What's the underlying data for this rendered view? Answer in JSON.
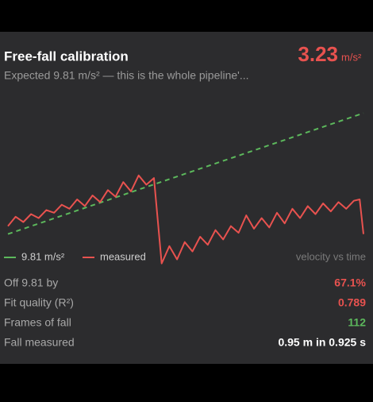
{
  "header": {
    "title": "Free-fall calibration",
    "value": "3.23",
    "unit": "m/s²",
    "subtitle": "Expected 9.81 m/s² — this is the whole pipeline'..."
  },
  "chart_data": {
    "type": "line",
    "annotation": "velocity vs time",
    "xlim": [
      0,
      0.925
    ],
    "ylim": [
      -3,
      11
    ],
    "series": [
      {
        "name": "9.81 m/s²",
        "color": "#5cb85c",
        "dashed": true,
        "x": [
          0,
          0.925
        ],
        "values": [
          0,
          9.07
        ]
      },
      {
        "name": "measured",
        "color": "#e8524f",
        "dashed": false,
        "x": [
          0,
          0.02,
          0.04,
          0.06,
          0.08,
          0.1,
          0.12,
          0.14,
          0.16,
          0.18,
          0.2,
          0.22,
          0.24,
          0.26,
          0.28,
          0.3,
          0.32,
          0.34,
          0.36,
          0.38,
          0.4,
          0.42,
          0.44,
          0.46,
          0.48,
          0.5,
          0.52,
          0.54,
          0.56,
          0.58,
          0.6,
          0.62,
          0.64,
          0.66,
          0.68,
          0.7,
          0.72,
          0.74,
          0.76,
          0.78,
          0.8,
          0.82,
          0.84,
          0.86,
          0.88,
          0.9,
          0.915,
          0.925
        ],
        "values": [
          0.6,
          1.3,
          0.9,
          1.5,
          1.2,
          1.8,
          1.6,
          2.2,
          1.9,
          2.6,
          2.1,
          2.9,
          2.4,
          3.3,
          2.8,
          3.9,
          3.2,
          4.4,
          3.7,
          4.2,
          -2.2,
          -0.9,
          -1.9,
          -0.6,
          -1.3,
          -0.2,
          -0.8,
          0.3,
          -0.4,
          0.6,
          0.1,
          1.4,
          0.4,
          1.2,
          0.5,
          1.6,
          0.8,
          1.9,
          1.2,
          2.1,
          1.5,
          2.3,
          1.7,
          2.4,
          1.9,
          2.5,
          2.6,
          0.0
        ]
      }
    ]
  },
  "stats": {
    "rows": [
      {
        "label": "Off 9.81 by",
        "value": "67.1%",
        "color": "#e8524f"
      },
      {
        "label": "Fit quality (R²)",
        "value": "0.789",
        "color": "#e8524f"
      },
      {
        "label": "Frames of fall",
        "value": "112",
        "color": "#5cb85c"
      },
      {
        "label": "Fall measured",
        "value": "0.95 m in 0.925 s",
        "color": "#ffffff"
      }
    ]
  }
}
